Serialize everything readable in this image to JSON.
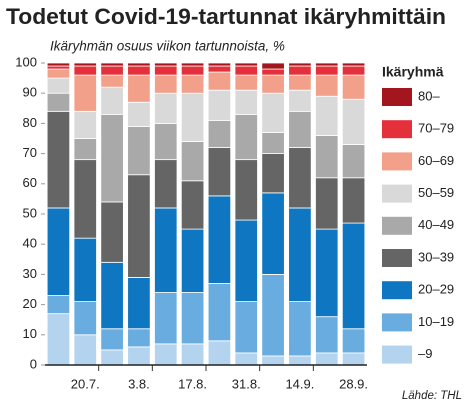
{
  "chart_data": {
    "type": "stacked_bar",
    "title": "Todetut Covid-19-tartunnat ikäryhmittäin",
    "subtitle": "Ikäryhmän osuus viikon tartunnoista, %",
    "legend_title": "Ikäryhmä",
    "source": "Lähde: THL",
    "categories": [
      null,
      "20.7.",
      null,
      "3.8.",
      null,
      "17.8.",
      null,
      "31.8.",
      null,
      "14.9.",
      null,
      "28.9."
    ],
    "series": [
      {
        "name": "–9",
        "color": "#b3d3ee",
        "values": [
          17,
          10,
          5,
          6,
          7,
          7,
          8,
          4,
          3,
          3,
          4,
          4
        ]
      },
      {
        "name": "10–19",
        "color": "#69acdf",
        "values": [
          6,
          11,
          7,
          6,
          17,
          17,
          19,
          17,
          27,
          18,
          12,
          8
        ]
      },
      {
        "name": "20–29",
        "color": "#0f77c1",
        "values": [
          29,
          21,
          22,
          17,
          28,
          21,
          29,
          27,
          27,
          31,
          29,
          35
        ]
      },
      {
        "name": "30–39",
        "color": "#656565",
        "values": [
          32,
          26,
          20,
          34,
          16,
          16,
          16,
          20,
          13,
          20,
          17,
          15
        ]
      },
      {
        "name": "40–49",
        "color": "#a9a9a9",
        "values": [
          6,
          7,
          29,
          16,
          12,
          13,
          9,
          15,
          7,
          12,
          14,
          11
        ]
      },
      {
        "name": "50–59",
        "color": "#d9d9d9",
        "values": [
          5,
          9,
          9,
          8,
          10,
          16,
          10,
          8,
          13,
          7,
          13,
          15
        ]
      },
      {
        "name": "60–69",
        "color": "#f2a08a",
        "values": [
          3,
          12,
          4,
          9,
          6,
          6,
          6,
          5,
          6,
          5,
          7,
          8
        ]
      },
      {
        "name": "70–79",
        "color": "#e4303a",
        "values": [
          1,
          3,
          3,
          3,
          3,
          3,
          2,
          3,
          2,
          3,
          3,
          3
        ]
      },
      {
        "name": "80–",
        "color": "#a3161e",
        "values": [
          1,
          1,
          1,
          1,
          1,
          1,
          1,
          1,
          2,
          1,
          1,
          1
        ]
      }
    ],
    "ylim": [
      0,
      100
    ],
    "yticks": [
      0,
      10,
      20,
      30,
      40,
      50,
      60,
      70,
      80,
      90,
      100
    ]
  }
}
